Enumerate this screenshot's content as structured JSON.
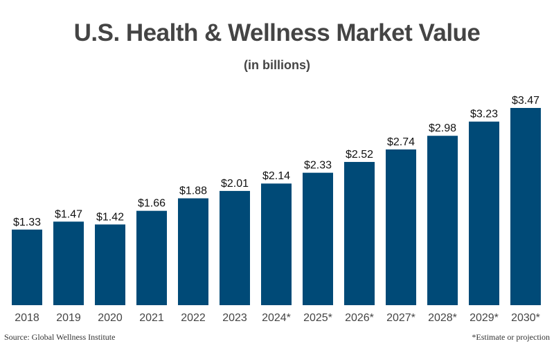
{
  "chart_data": {
    "type": "bar",
    "title": "U.S. Health & Wellness Market Value",
    "subtitle": "(in billions)",
    "xlabel": "",
    "ylabel": "",
    "categories": [
      "2018",
      "2019",
      "2020",
      "2021",
      "2022",
      "2023",
      "2024*",
      "2025*",
      "2026*",
      "2027*",
      "2028*",
      "2029*",
      "2030*"
    ],
    "values": [
      1.33,
      1.47,
      1.42,
      1.66,
      1.88,
      2.01,
      2.14,
      2.33,
      2.52,
      2.74,
      2.98,
      3.23,
      3.47
    ],
    "data_labels": [
      "$1.33",
      "$1.47",
      "$1.42",
      "$1.66",
      "$1.88",
      "$2.01",
      "$2.14",
      "$2.33",
      "$2.52",
      "$2.74",
      "$2.98",
      "$3.23",
      "$3.47"
    ],
    "ylim": [
      0,
      3.47
    ],
    "grid": false,
    "legend": "none",
    "bar_color": "#004a77",
    "source": "Source: Global Wellness Institute",
    "footnote": "*Estimate or projection"
  }
}
